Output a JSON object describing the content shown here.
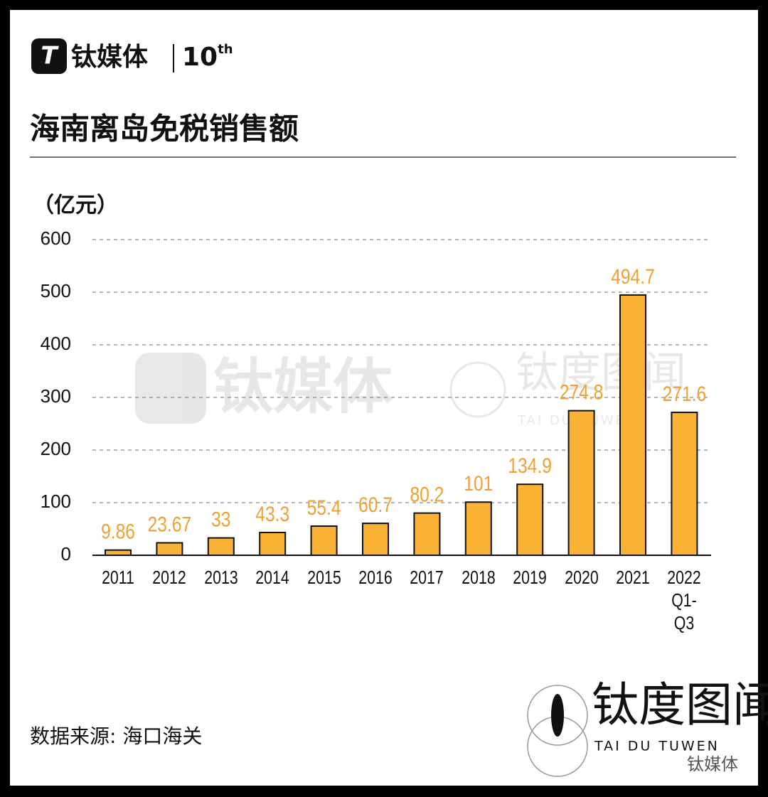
{
  "header": {
    "brand": "钛媒体",
    "anniversary": "10",
    "anniversary_suffix": "th"
  },
  "chart_data": {
    "type": "bar",
    "title": "海南离岛免税销售额",
    "y_label": "（亿元）",
    "categories": [
      "2011",
      "2012",
      "2013",
      "2014",
      "2015",
      "2016",
      "2017",
      "2018",
      "2019",
      "2020",
      "2021",
      "2022 Q1-Q3"
    ],
    "values": [
      9.86,
      23.67,
      33,
      43.3,
      55.4,
      60.7,
      80.2,
      101,
      134.9,
      274.8,
      494.7,
      271.6
    ],
    "color": "#f9b233",
    "label_color": "#f0a030",
    "ylim": [
      0,
      600
    ],
    "yticks": [
      0,
      100,
      200,
      300,
      400,
      500,
      600
    ],
    "grid": true
  },
  "source": "数据来源: 海口海关",
  "watermark": {
    "brand": "钛媒体",
    "studio": "钛度图闻",
    "studio_en": "TAI DU TUWEN"
  },
  "footer": {
    "studio": "钛度图闻",
    "studio_en": "TAI DU TUWEN",
    "wechat": "钛媒体"
  }
}
